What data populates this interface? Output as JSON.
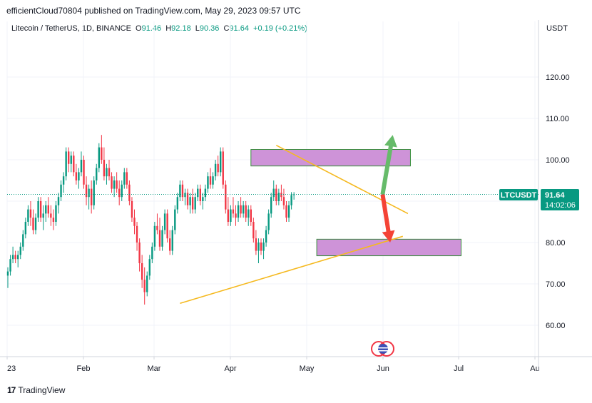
{
  "header": {
    "publish_text": "efficientCloud70804 published on TradingView.com, May 29, 2023 09:57 UTC"
  },
  "legend": {
    "pair": "Litecoin / TetherUS, 1D, BINANCE",
    "open_label": "O",
    "open": "91.46",
    "high_label": "H",
    "high": "92.18",
    "low_label": "L",
    "low": "90.36",
    "close_label": "C",
    "close": "91.64",
    "change": "+0.19 (+0.21%)"
  },
  "axis": {
    "currency": "USDT"
  },
  "price_tag": {
    "symbol": "LTCUSDT",
    "price": "91.64",
    "countdown": "14:02:06"
  },
  "footer": {
    "logo_mark": "17",
    "logo_text": "TradingView"
  },
  "colors": {
    "up": "#089981",
    "down": "#f23645",
    "trendline": "#f5b91f",
    "zone_fill": "#ce93d8",
    "zone_border": "#388e3c",
    "arrow_up": "#66bb6a",
    "arrow_down": "#f44336"
  },
  "chart_data": {
    "type": "candlestick",
    "symbol": "LTCUSDT",
    "y_ticks": [
      60,
      70,
      80,
      90,
      100,
      110,
      120
    ],
    "y_ticks_labels": [
      "60.00",
      "70.00",
      "80.00",
      "90.00",
      "100.00",
      "110.00",
      "120.00"
    ],
    "x_ticks_labels": [
      "23",
      "Feb",
      "Mar",
      "Apr",
      "May",
      "Jun",
      "Jul",
      "Au"
    ],
    "ylim": [
      53,
      133
    ],
    "last_price": 91.64,
    "zones": [
      {
        "from": "2023-04-07",
        "to": "2023-06-09",
        "low": 98.5,
        "high": 102.5
      },
      {
        "from": "2023-05-03",
        "to": "2023-06-29",
        "low": 76.8,
        "high": 80.8
      }
    ],
    "trendlines": [
      {
        "from": [
          "2023-04-17",
          103.5
        ],
        "to": [
          "2023-06-08",
          87.0
        ]
      },
      {
        "from": [
          "2023-03-10",
          65.3
        ],
        "to": [
          "2023-06-06",
          81.5
        ]
      }
    ],
    "arrows": [
      {
        "direction": "up",
        "from": [
          "2023-05-29",
          91.64
        ],
        "to": [
          "2023-06-02",
          106
        ]
      },
      {
        "direction": "down",
        "from": [
          "2023-05-29",
          91.64
        ],
        "to": [
          "2023-06-01",
          80
        ]
      }
    ],
    "ohlc": [
      {
        "o": 72,
        "h": 74,
        "l": 69,
        "c": 73
      },
      {
        "o": 73,
        "h": 77,
        "l": 72,
        "c": 76
      },
      {
        "o": 76,
        "h": 79,
        "l": 75,
        "c": 77
      },
      {
        "o": 77,
        "h": 78,
        "l": 75,
        "c": 76
      },
      {
        "o": 76,
        "h": 78,
        "l": 74,
        "c": 77
      },
      {
        "o": 77,
        "h": 80,
        "l": 76,
        "c": 79
      },
      {
        "o": 79,
        "h": 83,
        "l": 78,
        "c": 82
      },
      {
        "o": 82,
        "h": 86,
        "l": 81,
        "c": 85
      },
      {
        "o": 85,
        "h": 89,
        "l": 84,
        "c": 88
      },
      {
        "o": 88,
        "h": 90,
        "l": 84,
        "c": 86
      },
      {
        "o": 86,
        "h": 88,
        "l": 82,
        "c": 83
      },
      {
        "o": 83,
        "h": 87,
        "l": 82,
        "c": 86
      },
      {
        "o": 86,
        "h": 91,
        "l": 85,
        "c": 90
      },
      {
        "o": 90,
        "h": 91,
        "l": 85,
        "c": 86
      },
      {
        "o": 86,
        "h": 89,
        "l": 83,
        "c": 87
      },
      {
        "o": 87,
        "h": 90,
        "l": 85,
        "c": 89
      },
      {
        "o": 89,
        "h": 91,
        "l": 86,
        "c": 87
      },
      {
        "o": 87,
        "h": 89,
        "l": 84,
        "c": 86
      },
      {
        "o": 86,
        "h": 88,
        "l": 83,
        "c": 85
      },
      {
        "o": 85,
        "h": 90,
        "l": 84,
        "c": 89
      },
      {
        "o": 89,
        "h": 92,
        "l": 87,
        "c": 91
      },
      {
        "o": 91,
        "h": 95,
        "l": 90,
        "c": 94
      },
      {
        "o": 94,
        "h": 97,
        "l": 92,
        "c": 96
      },
      {
        "o": 96,
        "h": 103,
        "l": 95,
        "c": 102
      },
      {
        "o": 102,
        "h": 103,
        "l": 97,
        "c": 99
      },
      {
        "o": 99,
        "h": 102,
        "l": 97,
        "c": 101
      },
      {
        "o": 101,
        "h": 102,
        "l": 96,
        "c": 97
      },
      {
        "o": 97,
        "h": 99,
        "l": 94,
        "c": 95
      },
      {
        "o": 95,
        "h": 98,
        "l": 93,
        "c": 97
      },
      {
        "o": 97,
        "h": 102,
        "l": 96,
        "c": 100
      },
      {
        "o": 100,
        "h": 101,
        "l": 93,
        "c": 94
      },
      {
        "o": 94,
        "h": 96,
        "l": 89,
        "c": 91
      },
      {
        "o": 91,
        "h": 94,
        "l": 88,
        "c": 93
      },
      {
        "o": 93,
        "h": 95,
        "l": 87,
        "c": 89
      },
      {
        "o": 89,
        "h": 96,
        "l": 88,
        "c": 95
      },
      {
        "o": 95,
        "h": 99,
        "l": 94,
        "c": 98
      },
      {
        "o": 98,
        "h": 104,
        "l": 97,
        "c": 103
      },
      {
        "o": 103,
        "h": 106,
        "l": 99,
        "c": 100
      },
      {
        "o": 100,
        "h": 103,
        "l": 95,
        "c": 96
      },
      {
        "o": 96,
        "h": 99,
        "l": 94,
        "c": 98
      },
      {
        "o": 98,
        "h": 100,
        "l": 95,
        "c": 96
      },
      {
        "o": 96,
        "h": 97,
        "l": 92,
        "c": 93
      },
      {
        "o": 93,
        "h": 96,
        "l": 91,
        "c": 95
      },
      {
        "o": 95,
        "h": 97,
        "l": 92,
        "c": 93
      },
      {
        "o": 93,
        "h": 95,
        "l": 89,
        "c": 91
      },
      {
        "o": 91,
        "h": 95,
        "l": 90,
        "c": 94
      },
      {
        "o": 94,
        "h": 98,
        "l": 93,
        "c": 97
      },
      {
        "o": 97,
        "h": 98,
        "l": 93,
        "c": 94
      },
      {
        "o": 94,
        "h": 95,
        "l": 89,
        "c": 90
      },
      {
        "o": 90,
        "h": 91,
        "l": 85,
        "c": 86
      },
      {
        "o": 86,
        "h": 88,
        "l": 82,
        "c": 84
      },
      {
        "o": 84,
        "h": 85,
        "l": 78,
        "c": 80
      },
      {
        "o": 80,
        "h": 81,
        "l": 73,
        "c": 75
      },
      {
        "o": 75,
        "h": 77,
        "l": 69,
        "c": 71
      },
      {
        "o": 71,
        "h": 74,
        "l": 65,
        "c": 68
      },
      {
        "o": 68,
        "h": 73,
        "l": 67,
        "c": 72
      },
      {
        "o": 72,
        "h": 77,
        "l": 71,
        "c": 76
      },
      {
        "o": 76,
        "h": 80,
        "l": 75,
        "c": 79
      },
      {
        "o": 79,
        "h": 85,
        "l": 78,
        "c": 84
      },
      {
        "o": 84,
        "h": 87,
        "l": 82,
        "c": 83
      },
      {
        "o": 83,
        "h": 86,
        "l": 78,
        "c": 79
      },
      {
        "o": 79,
        "h": 84,
        "l": 78,
        "c": 83
      },
      {
        "o": 83,
        "h": 88,
        "l": 82,
        "c": 87
      },
      {
        "o": 87,
        "h": 88,
        "l": 80,
        "c": 81
      },
      {
        "o": 81,
        "h": 83,
        "l": 77,
        "c": 78
      },
      {
        "o": 78,
        "h": 84,
        "l": 77,
        "c": 83
      },
      {
        "o": 83,
        "h": 89,
        "l": 82,
        "c": 88
      },
      {
        "o": 88,
        "h": 92,
        "l": 87,
        "c": 91
      },
      {
        "o": 91,
        "h": 95,
        "l": 90,
        "c": 94
      },
      {
        "o": 94,
        "h": 95,
        "l": 90,
        "c": 91
      },
      {
        "o": 91,
        "h": 93,
        "l": 89,
        "c": 92
      },
      {
        "o": 92,
        "h": 93,
        "l": 88,
        "c": 89
      },
      {
        "o": 89,
        "h": 92,
        "l": 87,
        "c": 91
      },
      {
        "o": 91,
        "h": 93,
        "l": 87,
        "c": 88
      },
      {
        "o": 88,
        "h": 92,
        "l": 87,
        "c": 91
      },
      {
        "o": 91,
        "h": 94,
        "l": 90,
        "c": 93
      },
      {
        "o": 93,
        "h": 94,
        "l": 89,
        "c": 90
      },
      {
        "o": 90,
        "h": 92,
        "l": 88,
        "c": 91
      },
      {
        "o": 91,
        "h": 94,
        "l": 90,
        "c": 93
      },
      {
        "o": 93,
        "h": 97,
        "l": 92,
        "c": 96
      },
      {
        "o": 96,
        "h": 98,
        "l": 93,
        "c": 94
      },
      {
        "o": 94,
        "h": 97,
        "l": 93,
        "c": 96
      },
      {
        "o": 96,
        "h": 100,
        "l": 95,
        "c": 99
      },
      {
        "o": 99,
        "h": 101,
        "l": 96,
        "c": 97
      },
      {
        "o": 97,
        "h": 103,
        "l": 96,
        "c": 102
      },
      {
        "o": 102,
        "h": 103,
        "l": 93,
        "c": 94
      },
      {
        "o": 94,
        "h": 95,
        "l": 87,
        "c": 88
      },
      {
        "o": 88,
        "h": 91,
        "l": 84,
        "c": 85
      },
      {
        "o": 85,
        "h": 89,
        "l": 84,
        "c": 88
      },
      {
        "o": 88,
        "h": 91,
        "l": 86,
        "c": 87
      },
      {
        "o": 87,
        "h": 89,
        "l": 84,
        "c": 86
      },
      {
        "o": 86,
        "h": 90,
        "l": 85,
        "c": 89
      },
      {
        "o": 89,
        "h": 91,
        "l": 86,
        "c": 87
      },
      {
        "o": 87,
        "h": 90,
        "l": 86,
        "c": 89
      },
      {
        "o": 89,
        "h": 90,
        "l": 85,
        "c": 86
      },
      {
        "o": 86,
        "h": 89,
        "l": 84,
        "c": 88
      },
      {
        "o": 88,
        "h": 89,
        "l": 84,
        "c": 85
      },
      {
        "o": 85,
        "h": 86,
        "l": 80,
        "c": 81
      },
      {
        "o": 81,
        "h": 83,
        "l": 77,
        "c": 78
      },
      {
        "o": 78,
        "h": 81,
        "l": 75,
        "c": 80
      },
      {
        "o": 80,
        "h": 81,
        "l": 77,
        "c": 78
      },
      {
        "o": 78,
        "h": 81,
        "l": 76,
        "c": 80
      },
      {
        "o": 80,
        "h": 84,
        "l": 79,
        "c": 83
      },
      {
        "o": 83,
        "h": 88,
        "l": 82,
        "c": 87
      },
      {
        "o": 87,
        "h": 92,
        "l": 86,
        "c": 91
      },
      {
        "o": 91,
        "h": 95,
        "l": 90,
        "c": 93
      },
      {
        "o": 93,
        "h": 94,
        "l": 89,
        "c": 90
      },
      {
        "o": 90,
        "h": 93,
        "l": 89,
        "c": 92
      },
      {
        "o": 92,
        "h": 94,
        "l": 90,
        "c": 91
      },
      {
        "o": 91,
        "h": 93,
        "l": 88,
        "c": 89
      },
      {
        "o": 89,
        "h": 90,
        "l": 85,
        "c": 86
      },
      {
        "o": 86,
        "h": 90,
        "l": 85,
        "c": 89
      },
      {
        "o": 89,
        "h": 92.18,
        "l": 88,
        "c": 91.46
      },
      {
        "o": 91.46,
        "h": 92.18,
        "l": 90.36,
        "c": 91.64
      }
    ]
  }
}
